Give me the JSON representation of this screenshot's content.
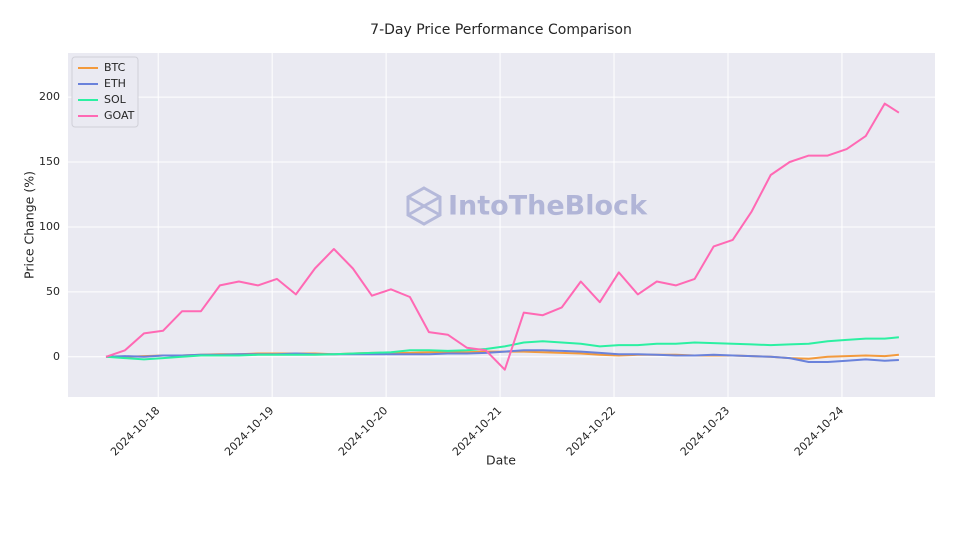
{
  "chart_data": {
    "type": "line",
    "title": "7-Day Price Performance Comparison",
    "xlabel": "Date",
    "ylabel": "Price Change (%)",
    "watermark": "IntoTheBlock",
    "x": [
      "2024-10-17T13:00",
      "2024-10-17T17:00",
      "2024-10-17T21:00",
      "2024-10-18T01:00",
      "2024-10-18T05:00",
      "2024-10-18T09:00",
      "2024-10-18T13:00",
      "2024-10-18T17:00",
      "2024-10-18T21:00",
      "2024-10-19T01:00",
      "2024-10-19T05:00",
      "2024-10-19T09:00",
      "2024-10-19T13:00",
      "2024-10-19T17:00",
      "2024-10-19T21:00",
      "2024-10-20T01:00",
      "2024-10-20T05:00",
      "2024-10-20T09:00",
      "2024-10-20T13:00",
      "2024-10-20T17:00",
      "2024-10-20T21:00",
      "2024-10-21T01:00",
      "2024-10-21T05:00",
      "2024-10-21T09:00",
      "2024-10-21T13:00",
      "2024-10-21T17:00",
      "2024-10-21T21:00",
      "2024-10-22T01:00",
      "2024-10-22T05:00",
      "2024-10-22T09:00",
      "2024-10-22T13:00",
      "2024-10-22T17:00",
      "2024-10-22T21:00",
      "2024-10-23T01:00",
      "2024-10-23T05:00",
      "2024-10-23T09:00",
      "2024-10-23T13:00",
      "2024-10-23T17:00",
      "2024-10-23T21:00",
      "2024-10-24T01:00",
      "2024-10-24T05:00",
      "2024-10-24T09:00",
      "2024-10-24T12:00"
    ],
    "series": [
      {
        "name": "BTC",
        "color": "#f39a3c",
        "values": [
          0,
          0,
          0.5,
          1,
          1,
          1.5,
          2,
          2,
          2.5,
          2.5,
          2.5,
          2.5,
          2,
          2.5,
          3,
          3,
          3,
          3.5,
          3.5,
          3.5,
          4,
          4,
          4,
          3.5,
          3,
          2.5,
          1.5,
          1,
          1.5,
          1.5,
          1.5,
          1,
          1,
          1,
          0.5,
          0,
          -1,
          -1.5,
          0,
          0.5,
          1,
          0.5,
          1.5
        ]
      },
      {
        "name": "ETH",
        "color": "#6a82db",
        "values": [
          0,
          0.5,
          0,
          1,
          1,
          1.5,
          1.5,
          2,
          2,
          2,
          2.5,
          2,
          2,
          2,
          2,
          2,
          2,
          2,
          2.5,
          2.5,
          3,
          4,
          5,
          5,
          4.5,
          4,
          3,
          2,
          2,
          1.5,
          1,
          1,
          1.5,
          1,
          0.5,
          0,
          -1,
          -4,
          -4,
          -3,
          -2,
          -3,
          -2.5
        ]
      },
      {
        "name": "SOL",
        "color": "#2cf0a2",
        "values": [
          0,
          -1,
          -2,
          -1,
          0,
          1,
          1,
          1,
          1.5,
          1.5,
          1.5,
          1.5,
          2,
          2.5,
          3,
          3.5,
          5,
          5,
          4.5,
          5,
          6,
          8,
          11,
          12,
          11,
          10,
          8,
          9,
          9,
          10,
          10,
          11,
          10.5,
          10,
          9.5,
          9,
          9.5,
          10,
          12,
          13,
          14,
          14,
          15
        ]
      },
      {
        "name": "GOAT",
        "color": "#ff69b4",
        "values": [
          0,
          5,
          18,
          20,
          35,
          35,
          55,
          58,
          55,
          60,
          48,
          68,
          83,
          68,
          47,
          52,
          46,
          19,
          17,
          7,
          5,
          -10,
          34,
          32,
          38,
          58,
          42,
          65,
          48,
          58,
          55,
          60,
          85,
          90,
          112,
          140,
          150,
          155,
          155,
          160,
          170,
          195,
          188
        ]
      }
    ],
    "xlim": [
      "2024-10-17T05:00",
      "2024-10-24T19:36"
    ],
    "xticks": [
      "2024-10-18",
      "2024-10-19",
      "2024-10-20",
      "2024-10-21",
      "2024-10-22",
      "2024-10-23",
      "2024-10-24"
    ],
    "ylim": [
      -31,
      234
    ],
    "yticks": [
      0,
      50,
      100,
      150,
      200
    ],
    "grid": true,
    "legend": "upper left"
  }
}
